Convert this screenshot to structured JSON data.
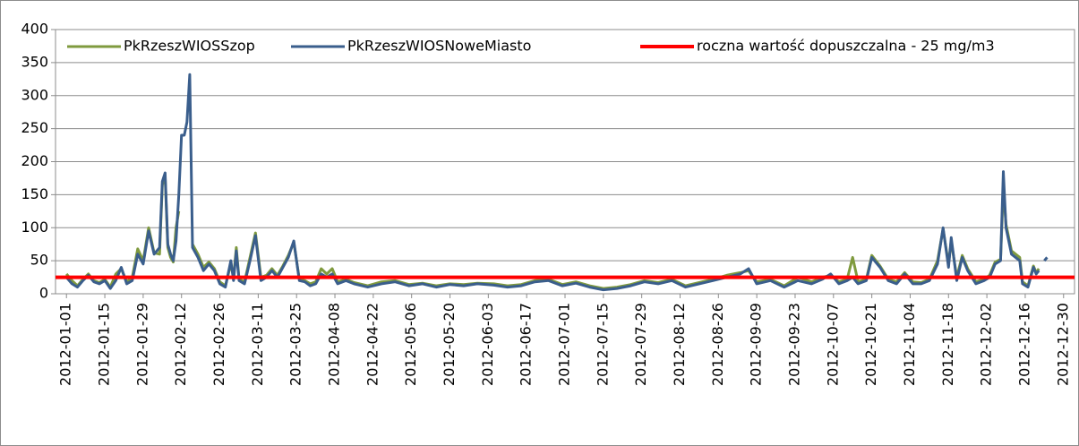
{
  "chart_data": {
    "type": "line",
    "x": [
      "2012-01-01",
      "2012-01-03",
      "2012-01-05",
      "2012-01-07",
      "2012-01-09",
      "2012-01-11",
      "2012-01-13",
      "2012-01-15",
      "2012-01-17",
      "2012-01-19",
      "2012-01-21",
      "2012-01-23",
      "2012-01-25",
      "2012-01-27",
      "2012-01-29",
      "2012-01-31",
      "2012-02-02",
      "2012-02-04",
      "2012-02-05",
      "2012-02-06",
      "2012-02-07",
      "2012-02-08",
      "2012-02-09",
      "2012-02-10",
      "2012-02-11",
      "2012-02-12",
      "2012-02-13",
      "2012-02-14",
      "2012-02-15",
      "2012-02-16",
      "2012-02-18",
      "2012-02-20",
      "2012-02-22",
      "2012-02-24",
      "2012-02-26",
      "2012-02-28",
      "2012-03-01",
      "2012-03-02",
      "2012-03-03",
      "2012-03-04",
      "2012-03-06",
      "2012-03-08",
      "2012-03-10",
      "2012-03-12",
      "2012-03-14",
      "2012-03-16",
      "2012-03-18",
      "2012-03-20",
      "2012-03-22",
      "2012-03-24",
      "2012-03-26",
      "2012-03-28",
      "2012-03-30",
      "2012-04-01",
      "2012-04-03",
      "2012-04-05",
      "2012-04-07",
      "2012-04-09",
      "2012-04-12",
      "2012-04-15",
      "2012-04-20",
      "2012-04-25",
      "2012-04-30",
      "2012-05-05",
      "2012-05-10",
      "2012-05-15",
      "2012-05-20",
      "2012-05-25",
      "2012-05-30",
      "2012-06-05",
      "2012-06-10",
      "2012-06-15",
      "2012-06-20",
      "2012-06-25",
      "2012-06-30",
      "2012-07-05",
      "2012-07-10",
      "2012-07-15",
      "2012-07-20",
      "2012-07-25",
      "2012-07-30",
      "2012-08-04",
      "2012-08-09",
      "2012-08-14",
      "2012-08-19",
      "2012-08-24",
      "2012-08-29",
      "2012-09-03",
      "2012-09-06",
      "2012-09-09",
      "2012-09-14",
      "2012-09-19",
      "2012-09-24",
      "2012-09-29",
      "2012-10-03",
      "2012-10-06",
      "2012-10-09",
      "2012-10-12",
      "2012-10-14",
      "2012-10-16",
      "2012-10-19",
      "2012-10-21",
      "2012-10-24",
      "2012-10-27",
      "2012-10-30",
      "2012-11-02",
      "2012-11-05",
      "2012-11-08",
      "2012-11-11",
      "2012-11-14",
      "2012-11-16",
      "2012-11-18",
      "2012-11-19",
      "2012-11-21",
      "2012-11-23",
      "2012-11-25",
      "2012-11-28",
      "2012-12-01",
      "2012-12-03",
      "2012-12-05",
      "2012-12-07",
      "2012-12-08",
      "2012-12-09",
      "2012-12-11",
      "2012-12-14",
      "2012-12-15",
      "2012-12-17",
      "2012-12-19",
      "2012-12-20",
      "2012-12-21",
      "2012-12-22",
      "2012-12-23",
      "2012-12-24"
    ],
    "series": [
      {
        "name": "PkRzeszWIOSSzop",
        "color": "#7f9a3e",
        "values": [
          30,
          20,
          12,
          22,
          30,
          20,
          17,
          22,
          10,
          30,
          38,
          18,
          25,
          68,
          50,
          100,
          62,
          60,
          165,
          178,
          70,
          55,
          48,
          100,
          125,
          null,
          null,
          null,
          null,
          75,
          60,
          40,
          48,
          38,
          18,
          12,
          45,
          25,
          70,
          22,
          18,
          55,
          92,
          25,
          28,
          38,
          28,
          42,
          58,
          78,
          22,
          20,
          15,
          18,
          38,
          30,
          38,
          18,
          22,
          17,
          12,
          18,
          20,
          14,
          16,
          12,
          15,
          14,
          16,
          15,
          12,
          14,
          20,
          22,
          14,
          18,
          12,
          8,
          10,
          14,
          20,
          17,
          22,
          12,
          17,
          22,
          28,
          32,
          35,
          18,
          22,
          12,
          25,
          18,
          25,
          28,
          18,
          22,
          55,
          18,
          22,
          58,
          42,
          22,
          18,
          32,
          18,
          17,
          22,
          50,
          98,
          45,
          80,
          25,
          58,
          38,
          18,
          22,
          28,
          48,
          52,
          160,
          105,
          65,
          55,
          18,
          12,
          42,
          32,
          38,
          null,
          null,
          null
        ]
      },
      {
        "name": "PkRzeszWIOSNoweMiasto",
        "color": "#3a5e8c",
        "values": [
          25,
          15,
          10,
          20,
          28,
          18,
          15,
          20,
          8,
          20,
          40,
          15,
          20,
          60,
          45,
          95,
          60,
          70,
          170,
          183,
          75,
          60,
          50,
          80,
          150,
          240,
          240,
          260,
          332,
          70,
          55,
          35,
          45,
          35,
          15,
          10,
          50,
          20,
          65,
          20,
          15,
          50,
          88,
          20,
          25,
          35,
          25,
          40,
          55,
          80,
          20,
          18,
          12,
          15,
          30,
          25,
          30,
          15,
          20,
          15,
          10,
          15,
          18,
          12,
          15,
          10,
          14,
          12,
          15,
          13,
          10,
          12,
          18,
          20,
          12,
          16,
          10,
          6,
          8,
          12,
          18,
          15,
          20,
          10,
          15,
          20,
          25,
          30,
          38,
          15,
          20,
          10,
          20,
          15,
          22,
          30,
          15,
          20,
          25,
          15,
          20,
          55,
          40,
          20,
          15,
          30,
          15,
          15,
          20,
          45,
          100,
          40,
          85,
          20,
          55,
          35,
          15,
          20,
          25,
          45,
          50,
          185,
          100,
          60,
          50,
          15,
          10,
          40,
          30,
          35,
          null,
          50,
          55
        ]
      },
      {
        "name": "roczna wartość dopuszczalna - 25 mg/m3",
        "color": "#ff0000",
        "x": [
          "2011-12-28",
          "2013-01-03"
        ],
        "values": [
          25,
          25
        ]
      }
    ],
    "xlim": [
      "2011-12-28",
      "2013-01-03"
    ],
    "xticks": [
      "2012-01-01",
      "2012-01-15",
      "2012-01-29",
      "2012-02-12",
      "2012-02-26",
      "2012-03-11",
      "2012-03-25",
      "2012-04-08",
      "2012-04-22",
      "2012-05-06",
      "2012-05-20",
      "2012-06-03",
      "2012-06-17",
      "2012-07-01",
      "2012-07-15",
      "2012-07-29",
      "2012-08-12",
      "2012-08-26",
      "2012-09-09",
      "2012-09-23",
      "2012-10-07",
      "2012-10-21",
      "2012-11-04",
      "2012-11-18",
      "2012-12-02",
      "2012-12-16",
      "2012-12-30"
    ],
    "ylim": [
      0,
      400
    ],
    "yticks": [
      0,
      50,
      100,
      150,
      200,
      250,
      300,
      350,
      400
    ],
    "grid": true,
    "legend": "top"
  }
}
